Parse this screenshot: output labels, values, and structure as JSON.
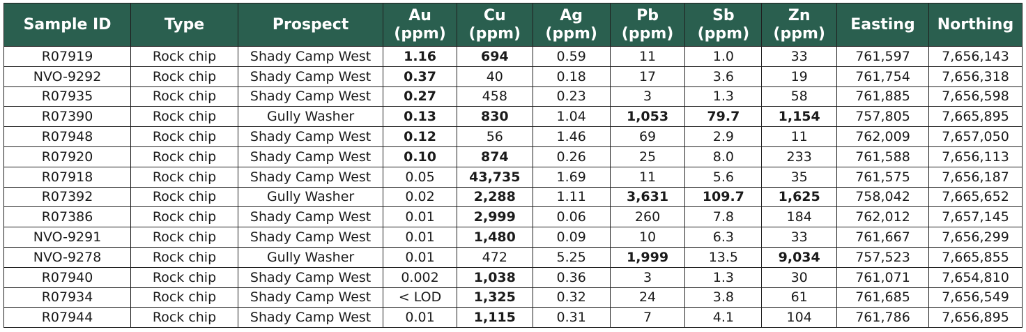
{
  "columns": [
    {
      "name": "Sample ID",
      "unit": ""
    },
    {
      "name": "Type",
      "unit": ""
    },
    {
      "name": "Prospect",
      "unit": ""
    },
    {
      "name": "Au",
      "unit": "(ppm)"
    },
    {
      "name": "Cu",
      "unit": "(ppm)"
    },
    {
      "name": "Ag",
      "unit": "(ppm)"
    },
    {
      "name": "Pb",
      "unit": "(ppm)"
    },
    {
      "name": "Sb",
      "unit": "(ppm)"
    },
    {
      "name": "Zn",
      "unit": "(ppm)"
    },
    {
      "name": "Easting",
      "unit": ""
    },
    {
      "name": "Northing",
      "unit": ""
    }
  ],
  "rows": [
    {
      "cells": [
        "R07919",
        "Rock chip",
        "Shady Camp West",
        "1.16",
        "694",
        "0.59",
        "11",
        "1.0",
        "33",
        "761,597",
        "7,656,143"
      ],
      "bold": [
        3,
        4
      ]
    },
    {
      "cells": [
        "NVO-9292",
        "Rock chip",
        "Shady Camp West",
        "0.37",
        "40",
        "0.18",
        "17",
        "3.6",
        "19",
        "761,754",
        "7,656,318"
      ],
      "bold": [
        3
      ]
    },
    {
      "cells": [
        "R07935",
        "Rock chip",
        "Shady Camp West",
        "0.27",
        "458",
        "0.23",
        "3",
        "1.3",
        "58",
        "761,885",
        "7,656,598"
      ],
      "bold": [
        3
      ]
    },
    {
      "cells": [
        "R07390",
        "Rock chip",
        "Gully Washer",
        "0.13",
        "830",
        "1.04",
        "1,053",
        "79.7",
        "1,154",
        "757,805",
        "7,665,895"
      ],
      "bold": [
        3,
        4,
        6,
        7,
        8
      ]
    },
    {
      "cells": [
        "R07948",
        "Rock chip",
        "Shady Camp West",
        "0.12",
        "56",
        "1.46",
        "69",
        "2.9",
        "11",
        "762,009",
        "7,657,050"
      ],
      "bold": [
        3
      ]
    },
    {
      "cells": [
        "R07920",
        "Rock chip",
        "Shady Camp West",
        "0.10",
        "874",
        "0.26",
        "25",
        "8.0",
        "233",
        "761,588",
        "7,656,113"
      ],
      "bold": [
        3,
        4
      ]
    },
    {
      "cells": [
        "R07918",
        "Rock chip",
        "Shady Camp West",
        "0.05",
        "43,735",
        "1.69",
        "11",
        "5.6",
        "35",
        "761,575",
        "7,656,187"
      ],
      "bold": [
        4
      ]
    },
    {
      "cells": [
        "R07392",
        "Rock chip",
        "Gully Washer",
        "0.02",
        "2,288",
        "1.11",
        "3,631",
        "109.7",
        "1,625",
        "758,042",
        "7,665,652"
      ],
      "bold": [
        4,
        6,
        7,
        8
      ]
    },
    {
      "cells": [
        "R07386",
        "Rock chip",
        "Shady Camp West",
        "0.01",
        "2,999",
        "0.06",
        "260",
        "7.8",
        "184",
        "762,012",
        "7,657,145"
      ],
      "bold": [
        4
      ]
    },
    {
      "cells": [
        "NVO-9291",
        "Rock chip",
        "Shady Camp West",
        "0.01",
        "1,480",
        "0.09",
        "10",
        "6.3",
        "33",
        "761,667",
        "7,656,299"
      ],
      "bold": [
        4
      ]
    },
    {
      "cells": [
        "NVO-9278",
        "Rock chip",
        "Gully Washer",
        "0.01",
        "472",
        "5.25",
        "1,999",
        "13.5",
        "9,034",
        "757,523",
        "7,665,855"
      ],
      "bold": [
        6,
        8
      ]
    },
    {
      "cells": [
        "R07940",
        "Rock chip",
        "Shady Camp West",
        "0.002",
        "1,038",
        "0.36",
        "3",
        "1.3",
        "30",
        "761,071",
        "7,654,810"
      ],
      "bold": [
        4
      ]
    },
    {
      "cells": [
        "R07934",
        "Rock chip",
        "Shady Camp West",
        "< LOD",
        "1,325",
        "0.32",
        "24",
        "3.8",
        "61",
        "761,685",
        "7,656,549"
      ],
      "bold": [
        4
      ]
    },
    {
      "cells": [
        "R07944",
        "Rock chip",
        "Shady Camp West",
        "0.01",
        "1,115",
        "0.31",
        "7",
        "4.1",
        "104",
        "761,786",
        "7,656,895"
      ],
      "bold": [
        4
      ]
    }
  ]
}
